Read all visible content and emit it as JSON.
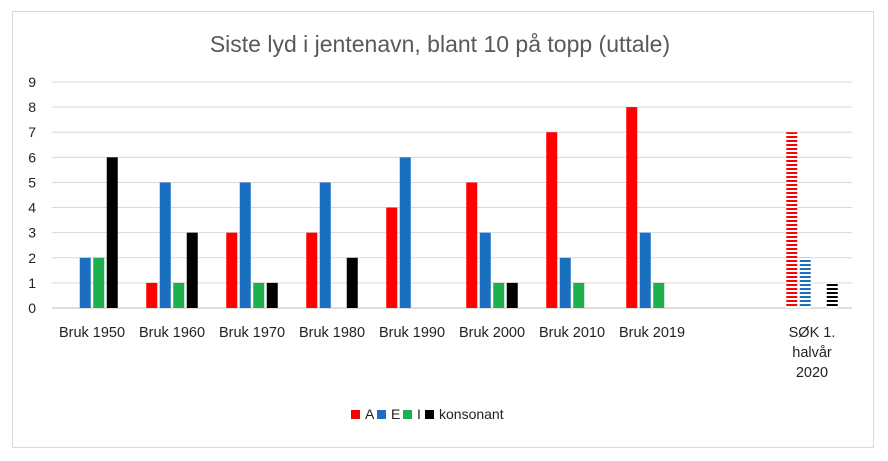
{
  "chart_data": {
    "type": "bar",
    "title": "Siste lyd i jentenavn, blant 10 på topp (uttale)",
    "xlabel": "",
    "ylabel": "",
    "ylim": [
      0,
      9
    ],
    "yticks": [
      "0",
      "1",
      "2",
      "3",
      "4",
      "5",
      "6",
      "7",
      "8",
      "9"
    ],
    "grid": true,
    "legend_position": "bottom",
    "categories": [
      [
        "Bruk 1950"
      ],
      [
        "Bruk 1960"
      ],
      [
        "Bruk 1970"
      ],
      [
        "Bruk 1980"
      ],
      [
        "Bruk 1990"
      ],
      [
        "Bruk 2000"
      ],
      [
        "Bruk 2010"
      ],
      [
        "Bruk 2019"
      ],
      [],
      [
        "SØK 1.",
        "halvår",
        "2020"
      ]
    ],
    "striped_categories": [
      9
    ],
    "series": [
      {
        "name": "A",
        "color": "#ff0000",
        "values": [
          0,
          1,
          3,
          3,
          4,
          5,
          7,
          8,
          0,
          7
        ]
      },
      {
        "name": "E",
        "color": "#1a6fc0",
        "values": [
          2,
          5,
          5,
          5,
          6,
          3,
          2,
          3,
          0,
          2
        ]
      },
      {
        "name": "I",
        "color": "#1db04e",
        "values": [
          2,
          1,
          1,
          0,
          0,
          1,
          1,
          1,
          0,
          0
        ]
      },
      {
        "name": "konsonant",
        "color": "#000000",
        "values": [
          6,
          3,
          1,
          2,
          0,
          1,
          0,
          0,
          0,
          1
        ]
      }
    ]
  }
}
